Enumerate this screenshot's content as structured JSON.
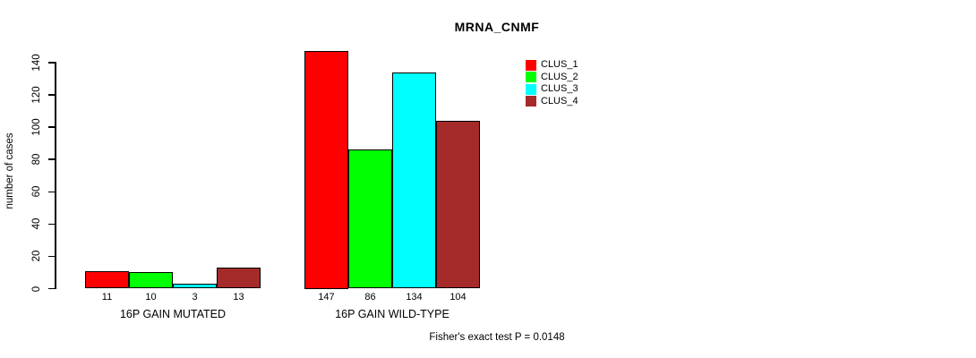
{
  "chart_data": {
    "type": "bar",
    "title": "MRNA_CNMF",
    "ylabel": "number of cases",
    "xlabel": "",
    "ylim": [
      0,
      140
    ],
    "yticks": [
      0,
      20,
      40,
      60,
      80,
      100,
      120,
      140
    ],
    "grid": false,
    "legend_position": "top-right",
    "categories": [
      "16P GAIN MUTATED",
      "16P GAIN WILD-TYPE"
    ],
    "series": [
      {
        "name": "CLUS_1",
        "color": "#ff0000",
        "values": [
          11,
          147
        ]
      },
      {
        "name": "CLUS_2",
        "color": "#00ff00",
        "values": [
          10,
          86
        ]
      },
      {
        "name": "CLUS_3",
        "color": "#00ffff",
        "values": [
          3,
          134
        ]
      },
      {
        "name": "CLUS_4",
        "color": "#a52a2a",
        "values": [
          13,
          104
        ]
      }
    ],
    "bar_value_labels": [
      [
        "11",
        "10",
        "3",
        "13"
      ],
      [
        "147",
        "86",
        "134",
        "104"
      ]
    ],
    "annotation": "Fisher's exact test P = 0.0148"
  }
}
